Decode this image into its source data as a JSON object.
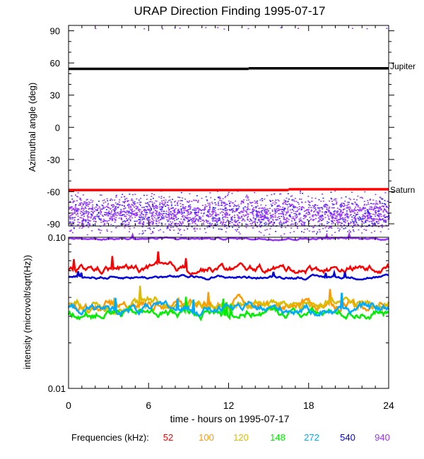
{
  "chart_data": [
    {
      "type": "scatter",
      "title": "URAP Direction Finding  1995-07-17",
      "ylabel": "Azimuthal angle (deg)",
      "ylim": [
        -92,
        95
      ],
      "xlim": [
        0,
        24
      ],
      "yticks": [
        "90",
        "60",
        "30",
        "0",
        "-30",
        "-60",
        "-90"
      ],
      "ytick_values": [
        90,
        60,
        30,
        0,
        -30,
        -60,
        -90
      ],
      "reference_lines": [
        {
          "name": "Jupiter",
          "color": "#000000",
          "segments": [
            [
              0,
              13.5,
              54.5
            ],
            [
              13.5,
              24,
              55.0
            ]
          ]
        },
        {
          "name": "Saturn",
          "color": "#ff0000",
          "segments": [
            [
              0,
              16.5,
              -58.5
            ],
            [
              16.5,
              24,
              -57.8
            ]
          ]
        }
      ],
      "scatter_band": {
        "y_center": -80,
        "y_spread": 10,
        "colors": [
          "#9933ff",
          "#2222ff"
        ]
      },
      "top_points_y": 92
    },
    {
      "type": "line",
      "ylabel": "intensity (microvolt/sqrt(Hz))",
      "yscale": "log",
      "ylim": [
        0.01,
        0.1
      ],
      "yticks": [
        "0.10",
        "0.01"
      ],
      "ytick_values": [
        0.1,
        0.01
      ],
      "xlabel": "time - hours on 1995-07-17",
      "xlim": [
        0,
        24
      ],
      "xticks": [
        "0",
        "6",
        "12",
        "18",
        "24"
      ],
      "xtick_values": [
        0,
        6,
        12,
        18,
        24
      ],
      "legend_label": "Frequencies (kHz):",
      "series": [
        {
          "name": "52",
          "color": "#ff0000",
          "level": 0.062,
          "noise": 0.03
        },
        {
          "name": "100",
          "color": "#ff9900",
          "level": 0.036,
          "noise": 0.04
        },
        {
          "name": "120",
          "color": "#ddbb00",
          "level": 0.036,
          "noise": 0.04
        },
        {
          "name": "148",
          "color": "#00ee00",
          "level": 0.0315,
          "noise": 0.035
        },
        {
          "name": "272",
          "color": "#00aaff",
          "level": 0.0335,
          "noise": 0.035
        },
        {
          "name": "540",
          "color": "#0000dd",
          "level": 0.0545,
          "noise": 0.012
        },
        {
          "name": "940",
          "color": "#9933ff",
          "level": 0.098,
          "noise": 0.008
        }
      ]
    }
  ]
}
